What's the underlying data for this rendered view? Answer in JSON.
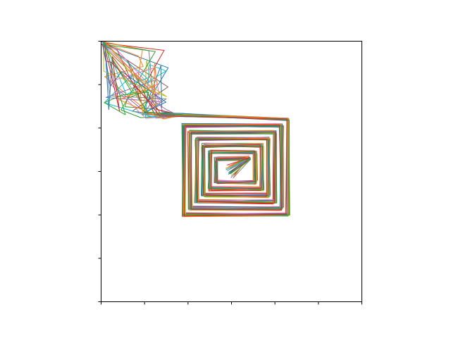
{
  "chart_data": {
    "type": "line",
    "title": "",
    "xlabel": "",
    "ylabel": "",
    "xlim": [
      0,
      6
    ],
    "ylim": [
      0,
      6
    ],
    "xticks": [
      0,
      1,
      2,
      3,
      4,
      5,
      6
    ],
    "yticks": [
      0,
      1,
      2,
      3,
      4,
      5,
      6
    ],
    "tick_labels_visible": false,
    "grid": false,
    "legend": "none",
    "spiral": {
      "corner_start": [
        1.8,
        4.3
      ],
      "outer_box": [
        1.9,
        2.0,
        4.3,
        4.2
      ],
      "box_step": 0.15,
      "rings": 6,
      "center": [
        3.0,
        3.0
      ]
    },
    "series_count": 24,
    "palette": [
      "#1f77b4",
      "#ff7f0e",
      "#2ca02c",
      "#d62728",
      "#9467bd",
      "#8c564b",
      "#e377c2",
      "#7f7f7f",
      "#bcbd22",
      "#17becf"
    ],
    "line_width": 1
  }
}
